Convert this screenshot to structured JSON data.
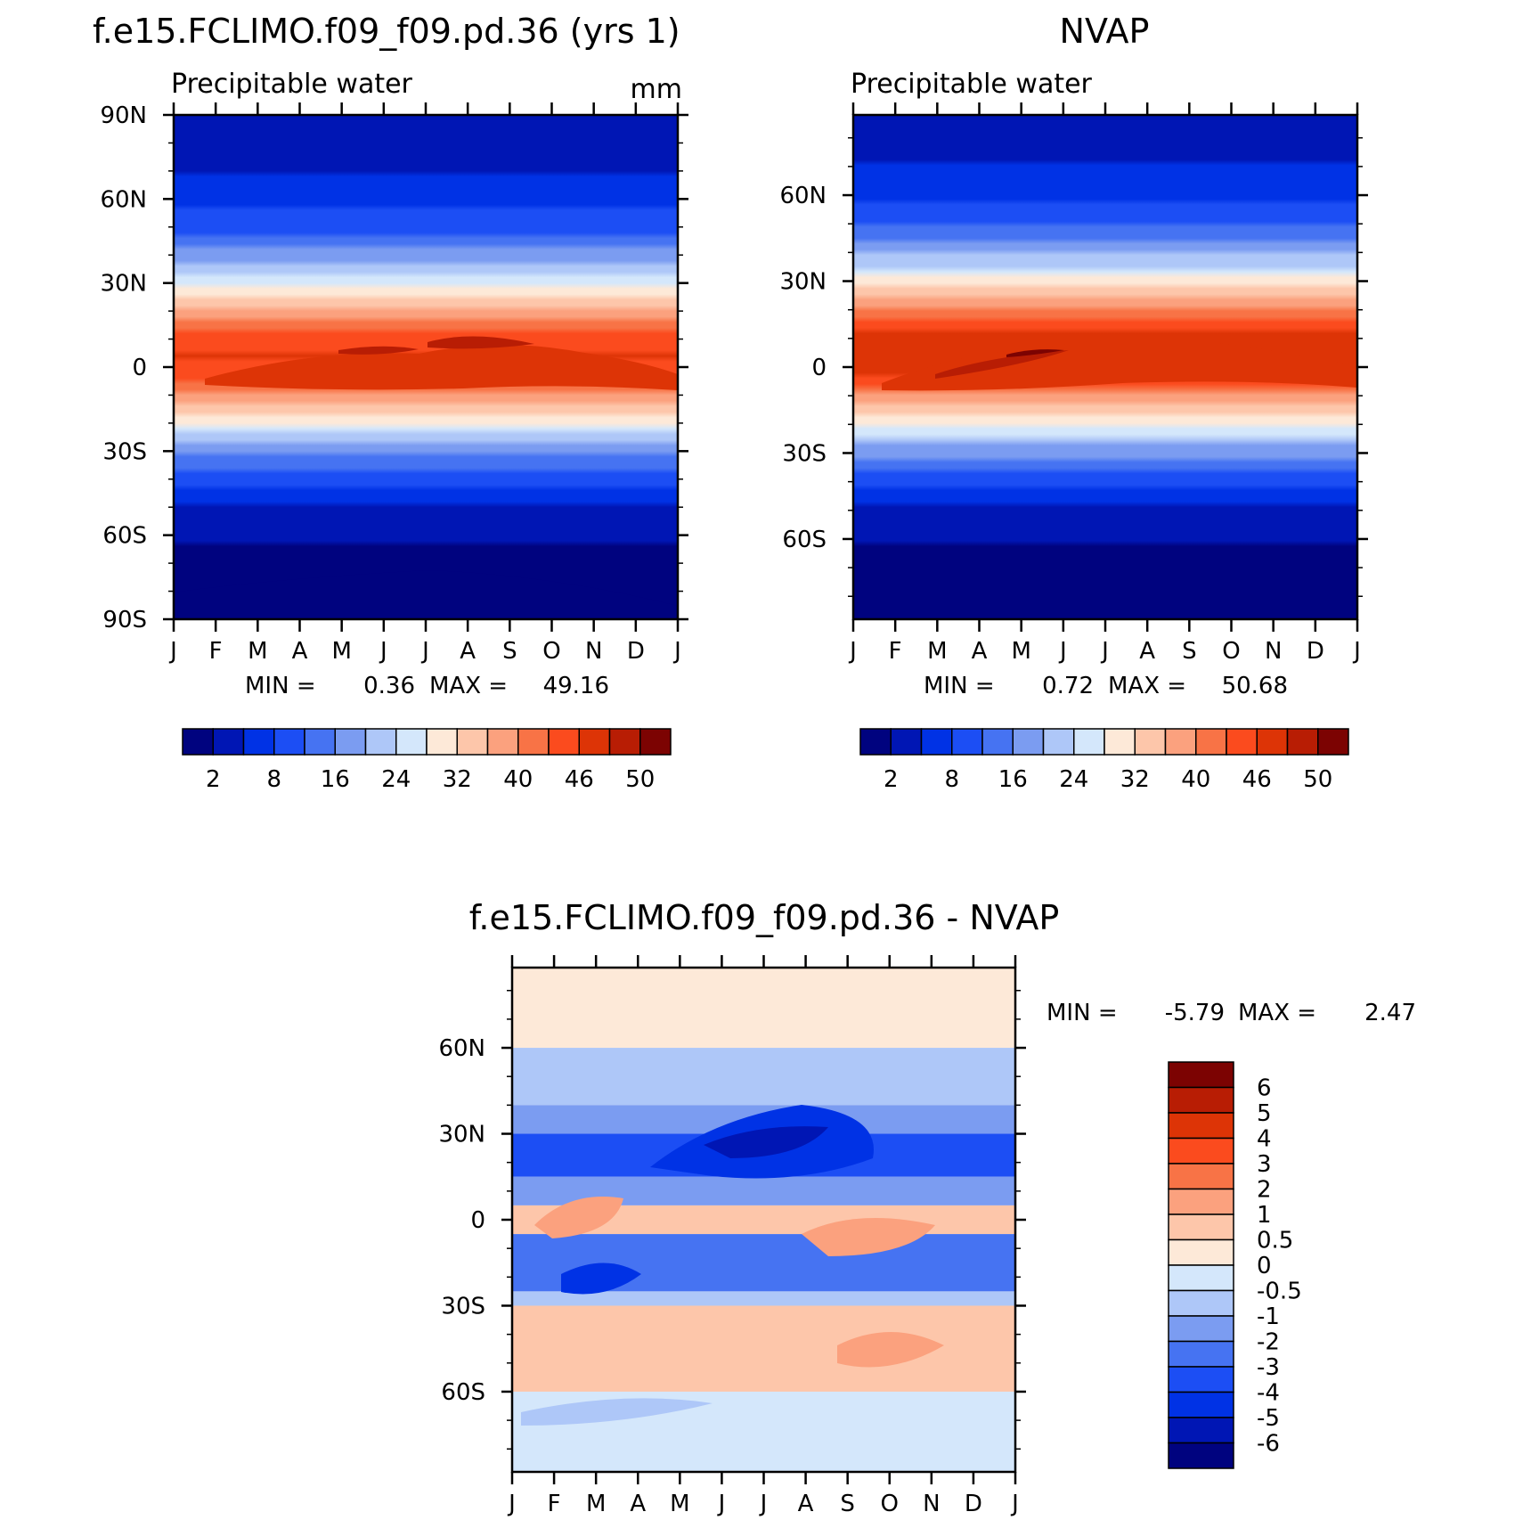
{
  "chart_data": [
    {
      "type": "heatmap",
      "title": "f.e15.FCLIMO.f09_f09.pd.36 (yrs 1)",
      "subtitle": "Precipitable water",
      "units": "mm",
      "x_ticks": [
        "J",
        "F",
        "M",
        "A",
        "M",
        "J",
        "J",
        "A",
        "S",
        "O",
        "N",
        "D",
        "J"
      ],
      "y_ticks": [
        "90N",
        "60N",
        "30N",
        "0",
        "30S",
        "60S",
        "90S"
      ],
      "y_tick_values": [
        90,
        60,
        30,
        0,
        -30,
        -60,
        -90
      ],
      "ylim": [
        -90,
        90
      ],
      "min_label": "MIN =",
      "min_value": "0.36",
      "max_label": "MAX =",
      "max_value": "49.16",
      "min": 0.36,
      "max": 49.16,
      "colorbar": {
        "orientation": "horizontal",
        "tick_labels": [
          "2",
          "8",
          "16",
          "24",
          "32",
          "40",
          "46",
          "50"
        ],
        "colors": [
          "#00037f",
          "#0016b4",
          "#0032e5",
          "#1c4ef4",
          "#4673f2",
          "#7b9cf1",
          "#aec7f8",
          "#d4e7fb",
          "#fde9d8",
          "#fdc6aa",
          "#fba17e",
          "#f87346",
          "#fb4b1e",
          "#dd3406",
          "#b81d04",
          "#7c0302"
        ]
      },
      "gradient": {
        "equator_value": 46,
        "north_pole_value": 4,
        "south_pole_value": 1,
        "seasonal_shift_deg": 8
      }
    },
    {
      "type": "heatmap",
      "title": "NVAP",
      "subtitle": "Precipitable water",
      "x_ticks": [
        "J",
        "F",
        "M",
        "A",
        "M",
        "J",
        "J",
        "A",
        "S",
        "O",
        "N",
        "D",
        "J"
      ],
      "y_ticks": [
        "60N",
        "30N",
        "0",
        "30S",
        "60S"
      ],
      "y_tick_values": [
        60,
        30,
        0,
        -30,
        -60
      ],
      "ylim": [
        -88,
        88
      ],
      "min_label": "MIN =",
      "min_value": "0.72",
      "max_label": "MAX =",
      "max_value": "50.68",
      "min": 0.72,
      "max": 50.68,
      "colorbar": {
        "orientation": "horizontal",
        "tick_labels": [
          "2",
          "8",
          "16",
          "24",
          "32",
          "40",
          "46",
          "50"
        ],
        "colors": [
          "#00037f",
          "#0016b4",
          "#0032e5",
          "#1c4ef4",
          "#4673f2",
          "#7b9cf1",
          "#aec7f8",
          "#d4e7fb",
          "#fde9d8",
          "#fdc6aa",
          "#fba17e",
          "#f87346",
          "#fb4b1e",
          "#dd3406",
          "#b81d04",
          "#7c0302"
        ]
      },
      "gradient": {
        "equator_value": 48,
        "north_pole_value": 4,
        "south_pole_value": 1,
        "seasonal_shift_deg": 10
      }
    },
    {
      "type": "heatmap",
      "title": "f.e15.FCLIMO.f09_f09.pd.36 - NVAP",
      "x_ticks": [
        "J",
        "F",
        "M",
        "A",
        "M",
        "J",
        "J",
        "A",
        "S",
        "O",
        "N",
        "D",
        "J"
      ],
      "y_ticks": [
        "60N",
        "30N",
        "0",
        "30S",
        "60S"
      ],
      "y_tick_values": [
        60,
        30,
        0,
        -30,
        -60
      ],
      "ylim": [
        -88,
        88
      ],
      "min_label": "MIN =",
      "min_value": "-5.79",
      "max_label": "MAX =",
      "max_value": "2.47",
      "min": -5.79,
      "max": 2.47,
      "colorbar": {
        "orientation": "vertical",
        "tick_labels": [
          "6",
          "5",
          "4",
          "3",
          "2",
          "1",
          "0.5",
          "0",
          "-0.5",
          "-1",
          "-2",
          "-3",
          "-4",
          "-5",
          "-6"
        ],
        "colors": [
          "#7c0302",
          "#b81d04",
          "#dd3406",
          "#fb4b1e",
          "#f87346",
          "#fba17e",
          "#fdc6aa",
          "#fde9d8",
          "#d4e7fb",
          "#aec7f8",
          "#7b9cf1",
          "#4673f2",
          "#1c4ef4",
          "#0032e5",
          "#0016b4",
          "#00037f"
        ]
      },
      "difference_bands": [
        {
          "lat": [
            60,
            88
          ],
          "value": 0.3
        },
        {
          "lat": [
            40,
            60
          ],
          "value": -0.7
        },
        {
          "lat": [
            30,
            40
          ],
          "value": -1.5
        },
        {
          "lat": [
            15,
            30
          ],
          "value": -3.2
        },
        {
          "lat": [
            5,
            15
          ],
          "value": -1.2
        },
        {
          "lat": [
            -5,
            5
          ],
          "value": 0.6
        },
        {
          "lat": [
            -25,
            -5
          ],
          "value": -2.2
        },
        {
          "lat": [
            -30,
            -25
          ],
          "value": -0.7
        },
        {
          "lat": [
            -60,
            -30
          ],
          "value": 0.7
        },
        {
          "lat": [
            -88,
            -60
          ],
          "value": -0.4
        }
      ]
    }
  ]
}
